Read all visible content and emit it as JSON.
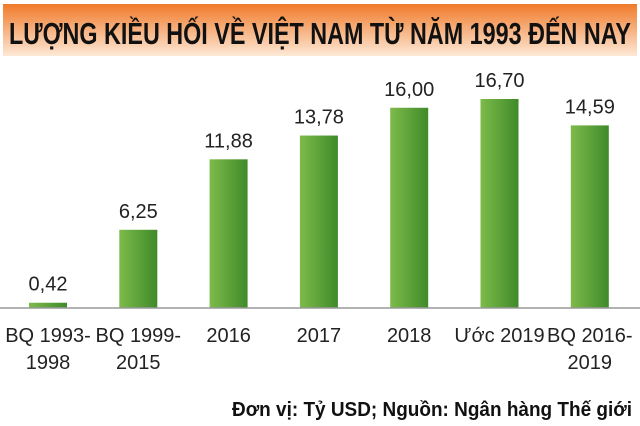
{
  "chart_data": {
    "type": "bar",
    "title": "LƯỢNG KIỀU HỐI VỀ VIỆT NAM TỪ NĂM 1993 ĐẾN NAY",
    "categories": [
      [
        "BQ 1993-",
        "1998"
      ],
      [
        "BQ 1999-",
        "2015"
      ],
      [
        "2016"
      ],
      [
        "2017"
      ],
      [
        "2018"
      ],
      [
        "Ước 2019"
      ],
      [
        "BQ 2016-",
        "2019"
      ]
    ],
    "values": [
      0.42,
      6.25,
      11.88,
      13.78,
      16.0,
      16.7,
      14.59
    ],
    "value_labels": [
      "0,42",
      "6,25",
      "11,88",
      "13,78",
      "16,00",
      "16,70",
      "14,59"
    ],
    "ylim": [
      0,
      18
    ],
    "grid": false,
    "xlabel": "",
    "ylabel": "",
    "footnote": "Đơn vị: Tỷ USD; Nguồn: Ngân hàng Thế giới",
    "colors": {
      "bar_light": "#7dbb4a",
      "bar_dark": "#3f8a2a",
      "banner_top": "#f07a2a",
      "banner_bottom": "#fde9d6",
      "axis": "#999999"
    }
  }
}
